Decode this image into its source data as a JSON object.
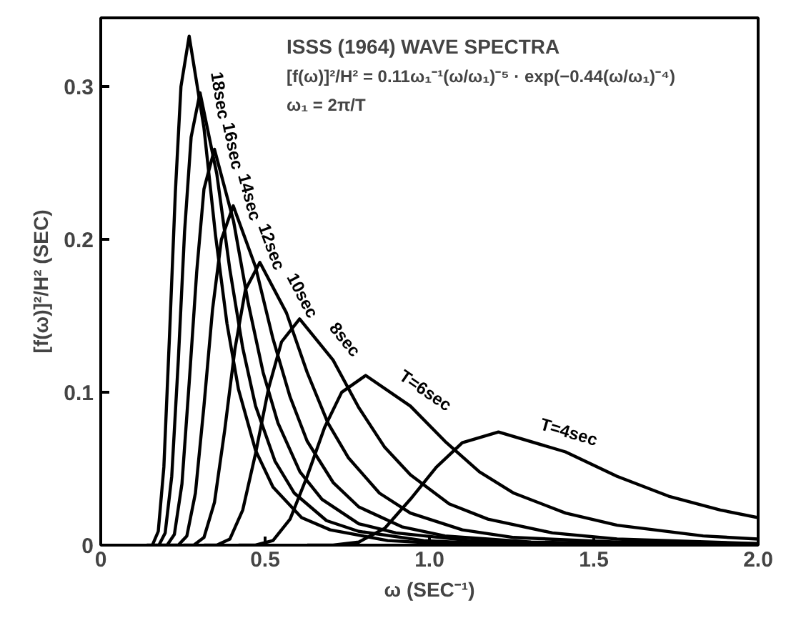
{
  "chart_data": {
    "type": "line",
    "title": "ISSS (1964) WAVE SPECTRA",
    "annotations": [
      "[f(ω)]²/H² = 0.11ω₁⁻¹(ω/ω₁)⁻⁵ · exp(−0.44(ω/ω₁)⁻⁴)",
      "ω₁ = 2π/T"
    ],
    "xlabel": "ω (SEC⁻¹)",
    "ylabel": "[f(ω)]²/H² (SEC)",
    "xlim": [
      0,
      2.0
    ],
    "ylim": [
      0,
      0.345
    ],
    "xticks": [
      0,
      0.5,
      {
        "value": 1.0,
        "label": "1.0"
      },
      1.5,
      {
        "value": 2.0,
        "label": "2.0"
      }
    ],
    "yticks": [
      0,
      0.1,
      0.2,
      0.3
    ],
    "grid": false,
    "legend": false,
    "marker": "none",
    "line_style": "solid",
    "series": [
      {
        "name": "18sec",
        "color": "#000000",
        "x": [
          0.14,
          0.157,
          0.175,
          0.192,
          0.209,
          0.227,
          0.244,
          0.269,
          0.314,
          0.349,
          0.384,
          0.419,
          0.471,
          0.524,
          0.611,
          0.698,
          0.873,
          1.047,
          1.396,
          1.745,
          2.0
        ],
        "values": [
          0,
          0,
          0.009,
          0.051,
          0.136,
          0.231,
          0.3,
          0.333,
          0.273,
          0.203,
          0.145,
          0.102,
          0.062,
          0.038,
          0.018,
          0.01,
          0.003,
          0.001,
          0,
          0,
          0
        ]
      },
      {
        "name": "16sec",
        "color": "#000000",
        "x": [
          0.157,
          0.177,
          0.196,
          0.216,
          0.236,
          0.255,
          0.275,
          0.302,
          0.353,
          0.393,
          0.432,
          0.471,
          0.53,
          0.589,
          0.687,
          0.785,
          0.982,
          1.178,
          1.571,
          1.963,
          2.0
        ],
        "values": [
          0,
          0,
          0.008,
          0.045,
          0.121,
          0.205,
          0.267,
          0.296,
          0.243,
          0.18,
          0.129,
          0.091,
          0.055,
          0.034,
          0.016,
          0.009,
          0.003,
          0.001,
          0,
          0,
          0
        ]
      },
      {
        "name": "14sec",
        "color": "#000000",
        "x": [
          0.18,
          0.202,
          0.224,
          0.247,
          0.269,
          0.292,
          0.314,
          0.346,
          0.404,
          0.449,
          0.494,
          0.539,
          0.606,
          0.673,
          0.785,
          0.898,
          1.122,
          1.346,
          1.795,
          2.0
        ],
        "values": [
          0,
          0,
          0.007,
          0.04,
          0.106,
          0.179,
          0.233,
          0.259,
          0.212,
          0.158,
          0.113,
          0.08,
          0.048,
          0.03,
          0.014,
          0.008,
          0.003,
          0.001,
          0,
          0
        ]
      },
      {
        "name": "12sec",
        "color": "#000000",
        "x": [
          0.209,
          0.236,
          0.262,
          0.288,
          0.314,
          0.34,
          0.367,
          0.403,
          0.471,
          0.524,
          0.576,
          0.628,
          0.707,
          0.785,
          0.916,
          1.047,
          1.309,
          1.571,
          2.0
        ],
        "values": [
          0,
          0,
          0.006,
          0.034,
          0.091,
          0.154,
          0.2,
          0.222,
          0.182,
          0.135,
          0.097,
          0.068,
          0.041,
          0.025,
          0.012,
          0.006,
          0.002,
          0.001,
          0
        ]
      },
      {
        "name": "10sec",
        "color": "#000000",
        "x": [
          0.251,
          0.283,
          0.314,
          0.346,
          0.377,
          0.408,
          0.44,
          0.484,
          0.565,
          0.628,
          0.691,
          0.754,
          0.848,
          0.942,
          1.1,
          1.257,
          1.571,
          2.0
        ],
        "values": [
          0,
          0,
          0.005,
          0.028,
          0.075,
          0.128,
          0.167,
          0.185,
          0.152,
          0.113,
          0.08,
          0.057,
          0.034,
          0.021,
          0.01,
          0.005,
          0.002,
          0.001
        ]
      },
      {
        "name": "8sec",
        "color": "#000000",
        "x": [
          0.314,
          0.353,
          0.393,
          0.432,
          0.471,
          0.511,
          0.55,
          0.605,
          0.707,
          0.785,
          0.864,
          0.942,
          1.06,
          1.178,
          1.374,
          1.571,
          2.0
        ],
        "values": [
          0,
          0,
          0.004,
          0.023,
          0.06,
          0.103,
          0.133,
          0.148,
          0.121,
          0.09,
          0.064,
          0.046,
          0.027,
          0.017,
          0.008,
          0.004,
          0.001
        ]
      },
      {
        "name": "T=6sec",
        "color": "#000000",
        "x": [
          0.419,
          0.471,
          0.524,
          0.576,
          0.628,
          0.681,
          0.733,
          0.806,
          0.942,
          1.047,
          1.152,
          1.257,
          1.414,
          1.571,
          1.833,
          2.0
        ],
        "values": [
          0,
          0,
          0.003,
          0.017,
          0.045,
          0.077,
          0.1,
          0.111,
          0.091,
          0.068,
          0.048,
          0.034,
          0.021,
          0.013,
          0.006,
          0.004
        ]
      },
      {
        "name": "T=4sec",
        "color": "#000000",
        "x": [
          0.628,
          0.707,
          0.785,
          0.864,
          0.942,
          1.021,
          1.1,
          1.21,
          1.414,
          1.571,
          1.728,
          1.885,
          2.0
        ],
        "values": [
          0,
          0,
          0.002,
          0.011,
          0.03,
          0.051,
          0.067,
          0.074,
          0.061,
          0.045,
          0.032,
          0.023,
          0.018
        ]
      }
    ]
  }
}
